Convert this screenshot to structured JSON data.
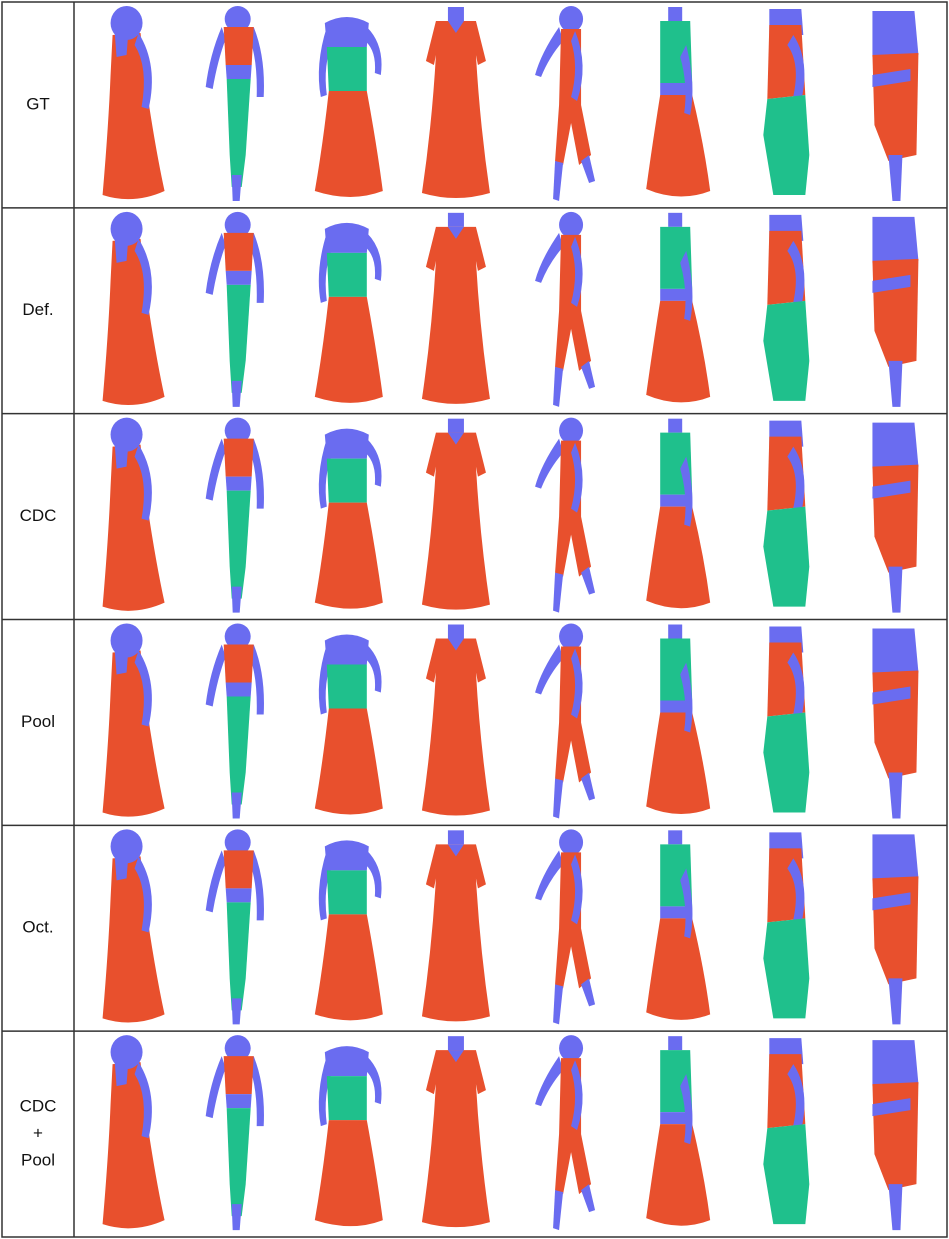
{
  "rows": [
    {
      "lines": [
        "GT"
      ]
    },
    {
      "lines": [
        "Def."
      ]
    },
    {
      "lines": [
        "CDC"
      ]
    },
    {
      "lines": [
        "Pool"
      ]
    },
    {
      "lines": [
        "Oct."
      ]
    },
    {
      "lines": [
        "CDC",
        "+",
        "Pool"
      ]
    }
  ]
}
